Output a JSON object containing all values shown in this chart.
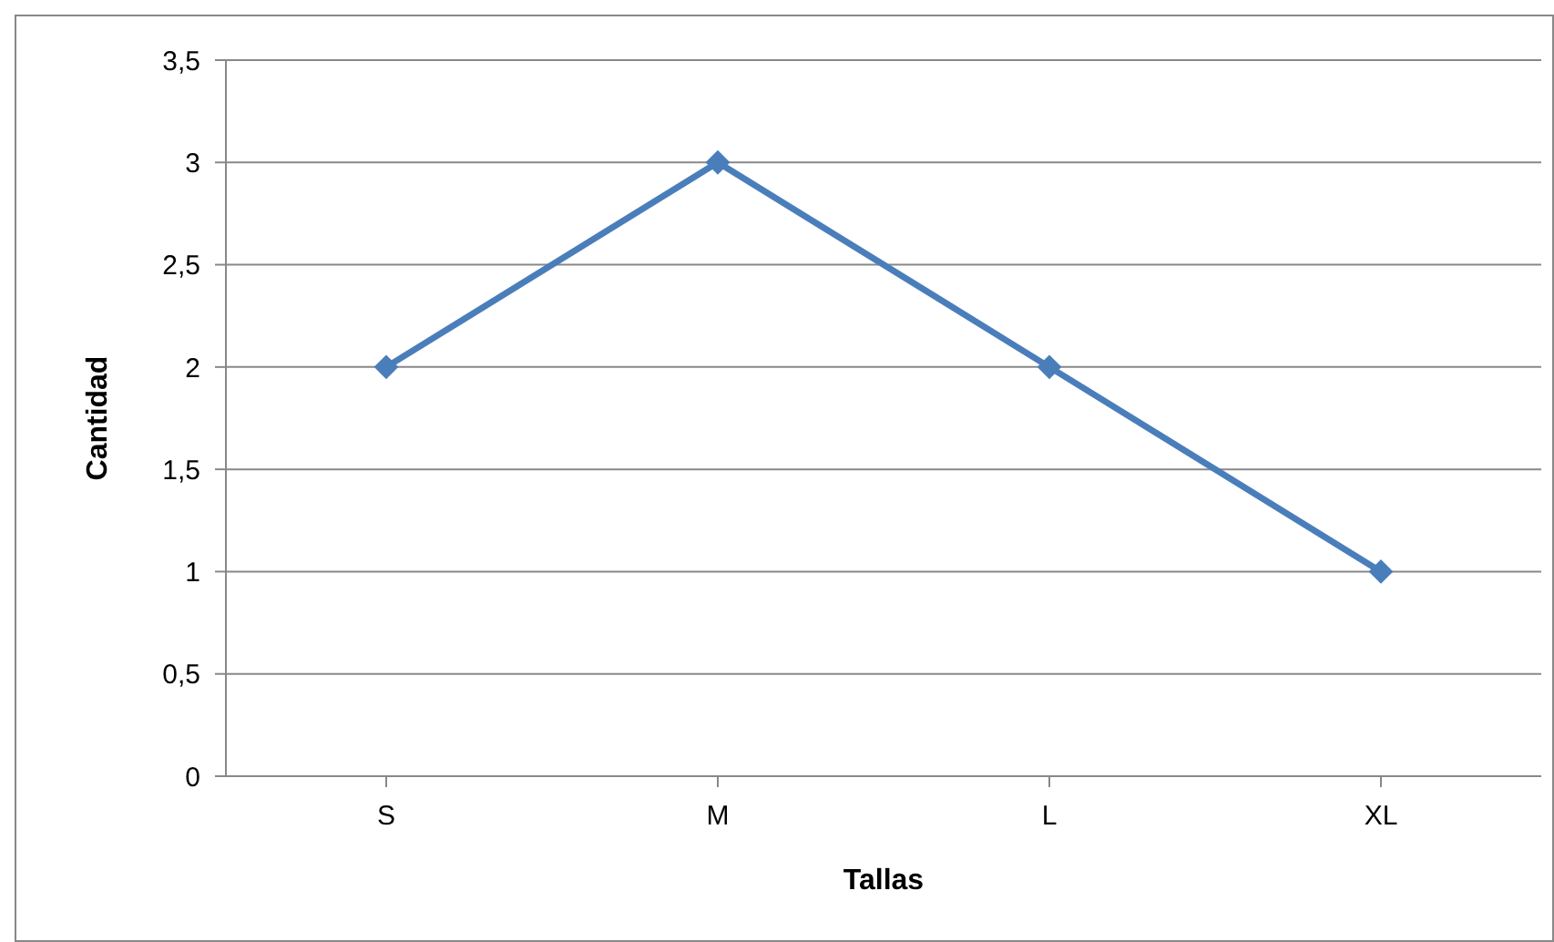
{
  "chart_data": {
    "type": "line",
    "xlabel": "Tallas",
    "ylabel": "Cantidad",
    "categories": [
      "S",
      "M",
      "L",
      "XL"
    ],
    "series": [
      {
        "color": "#4a7ebb",
        "values": [
          2,
          3,
          2,
          1
        ]
      }
    ],
    "ylim": [
      0,
      3.5
    ],
    "yticks": [
      0,
      {
        "value": 0.5,
        "label": "0,5"
      },
      1,
      {
        "value": 1.5,
        "label": "1,5"
      },
      2,
      {
        "value": 2.5,
        "label": "2,5"
      },
      3,
      {
        "value": 3.5,
        "label": "3,5"
      }
    ],
    "grid": "y",
    "marker": "diamond",
    "line_style": "solid"
  }
}
